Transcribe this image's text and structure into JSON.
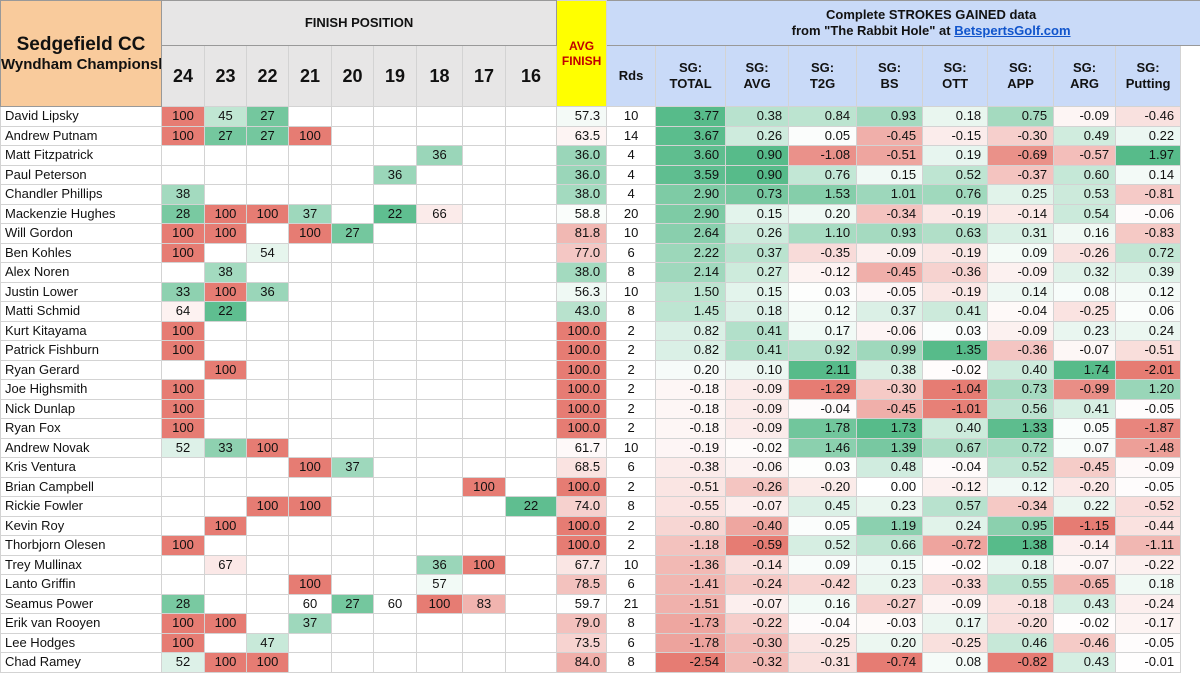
{
  "header": {
    "course": "Sedgefield CC",
    "event": "Wyndham Championship",
    "finish_label": "FINISH POSITION",
    "sg_line1": "Complete STROKES GAINED data",
    "sg_line2_prefix": "from \"The Rabbit Hole\" at ",
    "sg_link": "BetspertsGolf.com"
  },
  "finish_cols": [
    "24",
    "23",
    "22",
    "21",
    "20",
    "19",
    "18",
    "17",
    "16"
  ],
  "avg_label": [
    "AVG",
    "FINISH"
  ],
  "rds_label": "Rds",
  "sg_cols": [
    [
      "SG:",
      "TOTAL"
    ],
    [
      "SG:",
      "AVG"
    ],
    [
      "SG:",
      "T2G"
    ],
    [
      "SG:",
      "BS"
    ],
    [
      "SG:",
      "OTT"
    ],
    [
      "SG:",
      "APP"
    ],
    [
      "SG:",
      "ARG"
    ],
    [
      "SG:",
      "Putting"
    ]
  ],
  "players": [
    {
      "name": "David Lipsky",
      "finishes": [
        "100",
        "45",
        "27",
        "",
        "",
        "",
        "",
        "",
        ""
      ],
      "avg": "57.3",
      "rds": "10",
      "sg": [
        "3.77",
        "0.38",
        "0.84",
        "0.93",
        "0.18",
        "0.75",
        "-0.09",
        "-0.46"
      ]
    },
    {
      "name": "Andrew Putnam",
      "finishes": [
        "100",
        "27",
        "27",
        "100",
        "",
        "",
        "",
        "",
        ""
      ],
      "avg": "63.5",
      "rds": "14",
      "sg": [
        "3.67",
        "0.26",
        "0.05",
        "-0.45",
        "-0.15",
        "-0.30",
        "0.49",
        "0.22"
      ]
    },
    {
      "name": "Matt Fitzpatrick",
      "finishes": [
        "",
        "",
        "",
        "",
        "",
        "",
        "36",
        "",
        ""
      ],
      "avg": "36.0",
      "rds": "4",
      "sg": [
        "3.60",
        "0.90",
        "-1.08",
        "-0.51",
        "0.19",
        "-0.69",
        "-0.57",
        "1.97"
      ]
    },
    {
      "name": "Paul Peterson",
      "finishes": [
        "",
        "",
        "",
        "",
        "",
        "36",
        "",
        "",
        ""
      ],
      "avg": "36.0",
      "rds": "4",
      "sg": [
        "3.59",
        "0.90",
        "0.76",
        "0.15",
        "0.52",
        "-0.37",
        "0.60",
        "0.14"
      ]
    },
    {
      "name": "Chandler Phillips",
      "finishes": [
        "38",
        "",
        "",
        "",
        "",
        "",
        "",
        "",
        ""
      ],
      "avg": "38.0",
      "rds": "4",
      "sg": [
        "2.90",
        "0.73",
        "1.53",
        "1.01",
        "0.76",
        "0.25",
        "0.53",
        "-0.81"
      ]
    },
    {
      "name": "Mackenzie Hughes",
      "finishes": [
        "28",
        "100",
        "100",
        "37",
        "",
        "22",
        "66",
        "",
        ""
      ],
      "avg": "58.8",
      "rds": "20",
      "sg": [
        "2.90",
        "0.15",
        "0.20",
        "-0.34",
        "-0.19",
        "-0.14",
        "0.54",
        "-0.06"
      ]
    },
    {
      "name": "Will Gordon",
      "finishes": [
        "100",
        "100",
        "",
        "100",
        "27",
        "",
        "",
        "",
        ""
      ],
      "avg": "81.8",
      "rds": "10",
      "sg": [
        "2.64",
        "0.26",
        "1.10",
        "0.93",
        "0.63",
        "0.31",
        "0.16",
        "-0.83"
      ]
    },
    {
      "name": "Ben Kohles",
      "finishes": [
        "100",
        "",
        "54",
        "",
        "",
        "",
        "",
        "",
        ""
      ],
      "avg": "77.0",
      "rds": "6",
      "sg": [
        "2.22",
        "0.37",
        "-0.35",
        "-0.09",
        "-0.19",
        "0.09",
        "-0.26",
        "0.72"
      ]
    },
    {
      "name": "Alex Noren",
      "finishes": [
        "",
        "38",
        "",
        "",
        "",
        "",
        "",
        "",
        ""
      ],
      "avg": "38.0",
      "rds": "8",
      "sg": [
        "2.14",
        "0.27",
        "-0.12",
        "-0.45",
        "-0.36",
        "-0.09",
        "0.32",
        "0.39"
      ]
    },
    {
      "name": "Justin Lower",
      "finishes": [
        "33",
        "100",
        "36",
        "",
        "",
        "",
        "",
        "",
        ""
      ],
      "avg": "56.3",
      "rds": "10",
      "sg": [
        "1.50",
        "0.15",
        "0.03",
        "-0.05",
        "-0.19",
        "0.14",
        "0.08",
        "0.12"
      ]
    },
    {
      "name": "Matti Schmid",
      "finishes": [
        "64",
        "22",
        "",
        "",
        "",
        "",
        "",
        "",
        ""
      ],
      "avg": "43.0",
      "rds": "8",
      "sg": [
        "1.45",
        "0.18",
        "0.12",
        "0.37",
        "0.41",
        "-0.04",
        "-0.25",
        "0.06"
      ]
    },
    {
      "name": "Kurt Kitayama",
      "finishes": [
        "100",
        "",
        "",
        "",
        "",
        "",
        "",
        "",
        ""
      ],
      "avg": "100.0",
      "rds": "2",
      "sg": [
        "0.82",
        "0.41",
        "0.17",
        "-0.06",
        "0.03",
        "-0.09",
        "0.23",
        "0.24"
      ]
    },
    {
      "name": "Patrick Fishburn",
      "finishes": [
        "100",
        "",
        "",
        "",
        "",
        "",
        "",
        "",
        ""
      ],
      "avg": "100.0",
      "rds": "2",
      "sg": [
        "0.82",
        "0.41",
        "0.92",
        "0.99",
        "1.35",
        "-0.36",
        "-0.07",
        "-0.51"
      ]
    },
    {
      "name": "Ryan Gerard",
      "finishes": [
        "",
        "100",
        "",
        "",
        "",
        "",
        "",
        "",
        ""
      ],
      "avg": "100.0",
      "rds": "2",
      "sg": [
        "0.20",
        "0.10",
        "2.11",
        "0.38",
        "-0.02",
        "0.40",
        "1.74",
        "-2.01"
      ]
    },
    {
      "name": "Joe Highsmith",
      "finishes": [
        "100",
        "",
        "",
        "",
        "",
        "",
        "",
        "",
        ""
      ],
      "avg": "100.0",
      "rds": "2",
      "sg": [
        "-0.18",
        "-0.09",
        "-1.29",
        "-0.30",
        "-1.04",
        "0.73",
        "-0.99",
        "1.20"
      ]
    },
    {
      "name": "Nick Dunlap",
      "finishes": [
        "100",
        "",
        "",
        "",
        "",
        "",
        "",
        "",
        ""
      ],
      "avg": "100.0",
      "rds": "2",
      "sg": [
        "-0.18",
        "-0.09",
        "-0.04",
        "-0.45",
        "-1.01",
        "0.56",
        "0.41",
        "-0.05"
      ]
    },
    {
      "name": "Ryan Fox",
      "finishes": [
        "100",
        "",
        "",
        "",
        "",
        "",
        "",
        "",
        ""
      ],
      "avg": "100.0",
      "rds": "2",
      "sg": [
        "-0.18",
        "-0.09",
        "1.78",
        "1.73",
        "0.40",
        "1.33",
        "0.05",
        "-1.87"
      ]
    },
    {
      "name": "Andrew Novak",
      "finishes": [
        "52",
        "33",
        "100",
        "",
        "",
        "",
        "",
        "",
        ""
      ],
      "avg": "61.7",
      "rds": "10",
      "sg": [
        "-0.19",
        "-0.02",
        "1.46",
        "1.39",
        "0.67",
        "0.72",
        "0.07",
        "-1.48"
      ]
    },
    {
      "name": "Kris Ventura",
      "finishes": [
        "",
        "",
        "",
        "100",
        "37",
        "",
        "",
        "",
        ""
      ],
      "avg": "68.5",
      "rds": "6",
      "sg": [
        "-0.38",
        "-0.06",
        "0.03",
        "0.48",
        "-0.04",
        "0.52",
        "-0.45",
        "-0.09"
      ]
    },
    {
      "name": "Brian Campbell",
      "finishes": [
        "",
        "",
        "",
        "",
        "",
        "",
        "",
        "100",
        ""
      ],
      "avg": "100.0",
      "rds": "2",
      "sg": [
        "-0.51",
        "-0.26",
        "-0.20",
        "0.00",
        "-0.12",
        "0.12",
        "-0.20",
        "-0.05"
      ]
    },
    {
      "name": "Rickie Fowler",
      "finishes": [
        "",
        "",
        "100",
        "100",
        "",
        "",
        "",
        "",
        "22"
      ],
      "avg": "74.0",
      "rds": "8",
      "sg": [
        "-0.55",
        "-0.07",
        "0.45",
        "0.23",
        "0.57",
        "-0.34",
        "0.22",
        "-0.52"
      ]
    },
    {
      "name": "Kevin Roy",
      "finishes": [
        "",
        "100",
        "",
        "",
        "",
        "",
        "",
        "",
        ""
      ],
      "avg": "100.0",
      "rds": "2",
      "sg": [
        "-0.80",
        "-0.40",
        "0.05",
        "1.19",
        "0.24",
        "0.95",
        "-1.15",
        "-0.44"
      ]
    },
    {
      "name": "Thorbjorn Olesen",
      "finishes": [
        "100",
        "",
        "",
        "",
        "",
        "",
        "",
        "",
        ""
      ],
      "avg": "100.0",
      "rds": "2",
      "sg": [
        "-1.18",
        "-0.59",
        "0.52",
        "0.66",
        "-0.72",
        "1.38",
        "-0.14",
        "-1.11"
      ]
    },
    {
      "name": "Trey Mullinax",
      "finishes": [
        "",
        "67",
        "",
        "",
        "",
        "",
        "36",
        "100",
        ""
      ],
      "avg": "67.7",
      "rds": "10",
      "sg": [
        "-1.36",
        "-0.14",
        "0.09",
        "0.15",
        "-0.02",
        "0.18",
        "-0.07",
        "-0.22"
      ]
    },
    {
      "name": "Lanto Griffin",
      "finishes": [
        "",
        "",
        "",
        "100",
        "",
        "",
        "57",
        "",
        ""
      ],
      "avg": "78.5",
      "rds": "6",
      "sg": [
        "-1.41",
        "-0.24",
        "-0.42",
        "0.23",
        "-0.33",
        "0.55",
        "-0.65",
        "0.18"
      ]
    },
    {
      "name": "Seamus Power",
      "finishes": [
        "28",
        "",
        "",
        "60",
        "27",
        "60",
        "100",
        "83",
        ""
      ],
      "avg": "59.7",
      "rds": "21",
      "sg": [
        "-1.51",
        "-0.07",
        "0.16",
        "-0.27",
        "-0.09",
        "-0.18",
        "0.43",
        "-0.24"
      ]
    },
    {
      "name": "Erik van Rooyen",
      "finishes": [
        "100",
        "100",
        "",
        "37",
        "",
        "",
        "",
        "",
        ""
      ],
      "avg": "79.0",
      "rds": "8",
      "sg": [
        "-1.73",
        "-0.22",
        "-0.04",
        "-0.03",
        "0.17",
        "-0.20",
        "-0.02",
        "-0.17"
      ]
    },
    {
      "name": "Lee Hodges",
      "finishes": [
        "100",
        "",
        "47",
        "",
        "",
        "",
        "",
        "",
        ""
      ],
      "avg": "73.5",
      "rds": "6",
      "sg": [
        "-1.78",
        "-0.30",
        "-0.25",
        "0.20",
        "-0.25",
        "0.46",
        "-0.46",
        "-0.05"
      ]
    },
    {
      "name": "Chad Ramey",
      "finishes": [
        "52",
        "100",
        "100",
        "",
        "",
        "",
        "",
        "",
        ""
      ],
      "avg": "84.0",
      "rds": "8",
      "sg": [
        "-2.54",
        "-0.32",
        "-0.31",
        "-0.74",
        "0.08",
        "-0.82",
        "0.43",
        "-0.01"
      ]
    }
  ]
}
